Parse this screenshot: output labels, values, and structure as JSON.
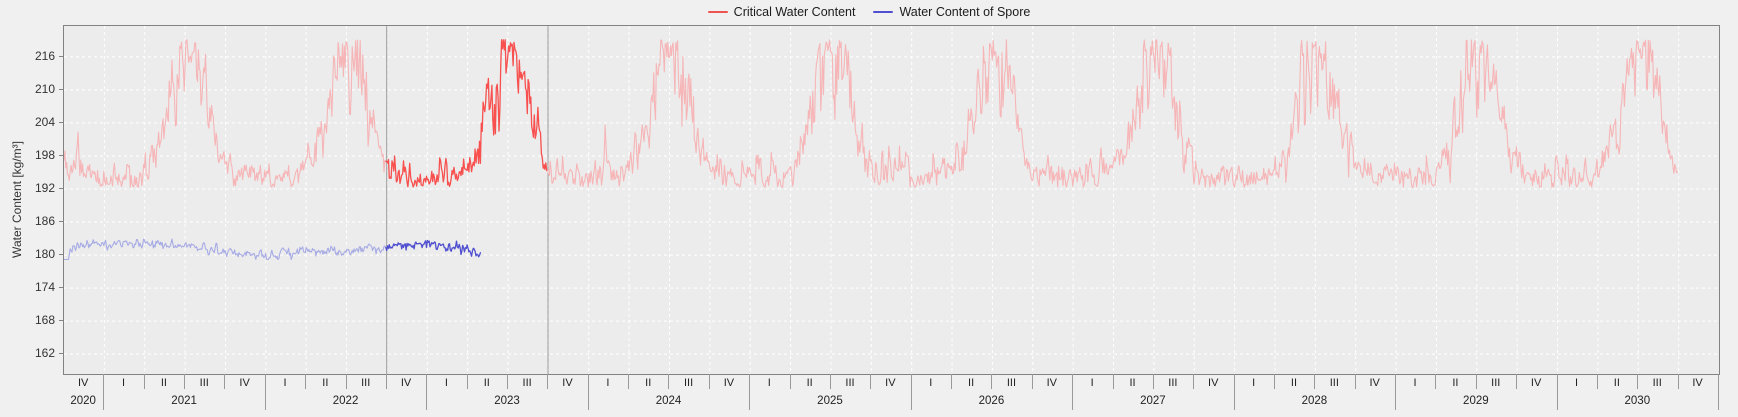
{
  "legend": {
    "items": [
      {
        "label": "Critical Water Content",
        "color": "#ef5350"
      },
      {
        "label": "Water Content of Spore",
        "color": "#4f4fd0"
      }
    ]
  },
  "colors": {
    "page_bg": "#f0f0f0",
    "plot_bg": "#ececec",
    "plot_border": "#828282",
    "gridline": "#ffffff",
    "highlight_line": "#9b9b9b",
    "tick_text": "#333333",
    "axis_label_text": "#222222",
    "red_active": "#f7504e",
    "red_dim": "#f6b5b7",
    "blue_active": "#4f4fd0",
    "blue_dim": "#a7abe4"
  },
  "chart_data": {
    "type": "line",
    "title": "",
    "ylabel": "Water Content [kg/m³]",
    "ylim": [
      158.4,
      221.6
    ],
    "yticks": [
      216,
      210,
      204,
      198,
      192,
      186,
      180,
      174,
      168,
      162
    ],
    "grid": "white dashed gridlines at every quarter (vertical) and every 6 kg/m³ (horizontal)",
    "legend_position": "top-center",
    "x_axis": {
      "start": "2020-10-01",
      "end": "2031-01-01",
      "quarters": [
        "IV",
        "I",
        "II",
        "III",
        "IV",
        "I",
        "II",
        "III",
        "IV",
        "I",
        "II",
        "III",
        "IV",
        "I",
        "II",
        "III",
        "IV",
        "I",
        "II",
        "III",
        "IV",
        "I",
        "II",
        "III",
        "IV",
        "I",
        "II",
        "III",
        "IV",
        "I",
        "II",
        "III",
        "IV",
        "I",
        "II",
        "III",
        "IV",
        "I",
        "II",
        "III",
        "IV"
      ],
      "years": [
        {
          "label": "2020",
          "quarters": 1
        },
        {
          "label": "2021",
          "quarters": 4
        },
        {
          "label": "2022",
          "quarters": 4
        },
        {
          "label": "2023",
          "quarters": 4
        },
        {
          "label": "2024",
          "quarters": 4
        },
        {
          "label": "2025",
          "quarters": 4
        },
        {
          "label": "2026",
          "quarters": 4
        },
        {
          "label": "2027",
          "quarters": 4
        },
        {
          "label": "2028",
          "quarters": 4
        },
        {
          "label": "2029",
          "quarters": 4
        },
        {
          "label": "2030",
          "quarters": 4
        }
      ]
    },
    "highlight_window": {
      "from": "2022-10-01",
      "to": "2023-10-01",
      "line_color": "#9b9b9b"
    },
    "series": [
      {
        "name": "Critical Water Content",
        "color_active": "#f7504e",
        "color_dim": "#f6b5b7",
        "start": "2020-10-01",
        "end": "2030-09-30",
        "step_days": 2,
        "baseline": 194.2,
        "winter_low": 192.3,
        "seasonal_peak_day_of_year": 186,
        "seasonal_sigma_days": 40,
        "peak_amplitude_by_year": {
          "2020": 23,
          "2021": 23.5,
          "2022": 23.5,
          "2023": 24.5,
          "2024": 23.5,
          "2025": 23,
          "2026": 22.5,
          "2027": 23.5,
          "2028": 23.5,
          "2029": 23,
          "2030": 24
        },
        "winter_event": {
          "date": "2020-11-01",
          "amplitude": 9,
          "sigma_days": 3
        },
        "noise": {
          "ar_phi": 0.45,
          "winter_sd": 1.15,
          "summer_sd": 4.6,
          "burst_probability": 0.015,
          "burst_min": 3,
          "burst_max": 8
        },
        "max_value": 219.1,
        "seed": 1337,
        "highlight_from": "2022-10-01",
        "highlight_to": "2023-10-01"
      },
      {
        "name": "Water Content of Spore",
        "color_active": "#4f4fd0",
        "color_dim": "#a7abe4",
        "start": "2020-10-01",
        "end": "2023-05-01",
        "step_days": 2,
        "keypoints": [
          [
            "2020-10-01",
            171.5
          ],
          [
            "2020-10-08",
            178.6
          ],
          [
            "2020-10-20",
            181.2
          ],
          [
            "2020-11-15",
            182.0
          ],
          [
            "2021-02-01",
            182.2
          ],
          [
            "2021-05-01",
            181.9
          ],
          [
            "2021-07-01",
            181.5
          ],
          [
            "2021-09-01",
            180.9
          ],
          [
            "2021-11-01",
            180.4
          ],
          [
            "2022-02-01",
            180.3
          ],
          [
            "2022-04-01",
            180.7
          ],
          [
            "2022-06-01",
            180.6
          ],
          [
            "2022-08-01",
            181.0
          ],
          [
            "2022-10-01",
            181.4
          ],
          [
            "2022-12-01",
            181.8
          ],
          [
            "2023-02-01",
            181.6
          ],
          [
            "2023-03-15",
            181.2
          ],
          [
            "2023-04-15",
            180.5
          ],
          [
            "2023-04-24",
            179.8
          ],
          [
            "2023-05-01",
            180.3
          ]
        ],
        "noise": {
          "ar_phi": 0.5,
          "sd": 0.45
        },
        "value_bounds": [
          179.2,
          183.3
        ],
        "seed": 99,
        "highlight_from": "2022-10-01",
        "highlight_to": "2023-05-01"
      }
    ]
  }
}
